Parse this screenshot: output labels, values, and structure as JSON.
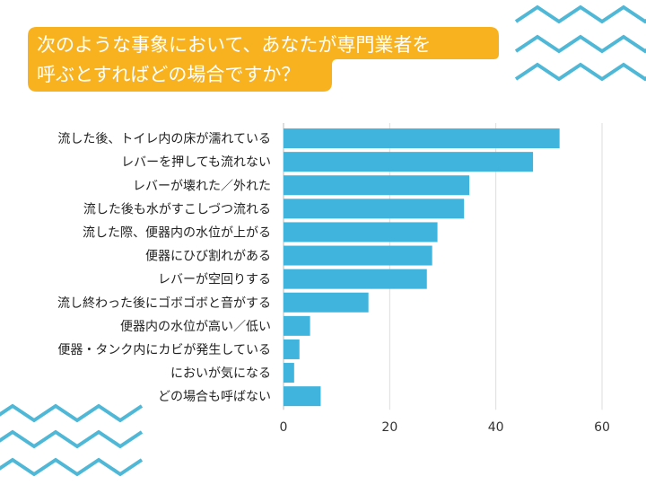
{
  "title": {
    "lines": [
      "次のような事象において、あなたが専門業者を",
      "呼ぶとすればどの場合ですか？"
    ],
    "bg_color": "#f9b21f",
    "text_color": "#ffffff"
  },
  "decoration": {
    "zigzag_color": "#4fb8d6",
    "zigzag_icon": "zigzag-lines"
  },
  "chart_data": {
    "type": "bar",
    "orientation": "horizontal",
    "title": "次のような事象において、あなたが専門業者を呼ぶとすればどの場合ですか？",
    "categories": [
      "流した後、トイレ内の床が濡れている",
      "レバーを押しても流れない",
      "レバーが壊れた／外れた",
      "流した後も水がすこしづつ流れる",
      "流した際、便器内の水位が上がる",
      "便器にひび割れがある",
      "レバーが空回りする",
      "流し終わった後にゴボゴボと音がする",
      "便器内の水位が高い／低い",
      "便器・タンク内にカビが発生している",
      "においが気になる",
      "どの場合も呼ばない"
    ],
    "values": [
      52,
      47,
      35,
      34,
      29,
      28,
      27,
      16,
      5,
      3,
      2,
      7
    ],
    "xlim": [
      0,
      60
    ],
    "xticks": [
      0,
      20,
      40,
      60
    ],
    "xlabel": "",
    "ylabel": "",
    "grid": true,
    "legend": "none",
    "bar_color": "#40b4dd",
    "grid_color": "#dddddd"
  }
}
